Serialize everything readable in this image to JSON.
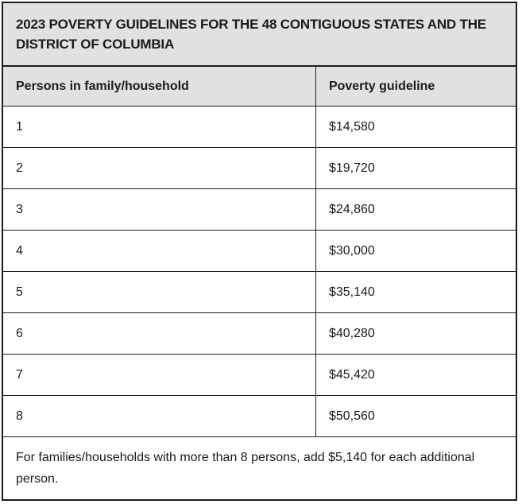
{
  "colors": {
    "border": "#1b1b1b",
    "header_bg": "#dfe1e2",
    "body_bg": "#ffffff",
    "text": "#1b1b1b"
  },
  "table": {
    "title": "2023 POVERTY GUIDELINES FOR THE 48 CONTIGUOUS STATES AND THE DISTRICT OF COLUMBIA",
    "columns": [
      "Persons in family/household",
      "Poverty guideline"
    ],
    "rows": [
      [
        "1",
        "$14,580"
      ],
      [
        "2",
        "$19,720"
      ],
      [
        "3",
        "$24,860"
      ],
      [
        "4",
        "$30,000"
      ],
      [
        "5",
        "$35,140"
      ],
      [
        "6",
        "$40,280"
      ],
      [
        "7",
        "$45,420"
      ],
      [
        "8",
        "$50,560"
      ]
    ],
    "footnote": "For families/households with more than 8 persons, add $5,140 for each additional person."
  },
  "chart_data": {
    "type": "table",
    "title": "2023 POVERTY GUIDELINES FOR THE 48 CONTIGUOUS STATES AND THE DISTRICT OF COLUMBIA",
    "columns": [
      "Persons in family/household",
      "Poverty guideline"
    ],
    "rows": [
      [
        1,
        14580
      ],
      [
        2,
        19720
      ],
      [
        3,
        24860
      ],
      [
        4,
        30000
      ],
      [
        5,
        35140
      ],
      [
        6,
        40280
      ],
      [
        7,
        45420
      ],
      [
        8,
        50560
      ]
    ],
    "note": "For families/households with more than 8 persons, add $5,140 for each additional person."
  }
}
